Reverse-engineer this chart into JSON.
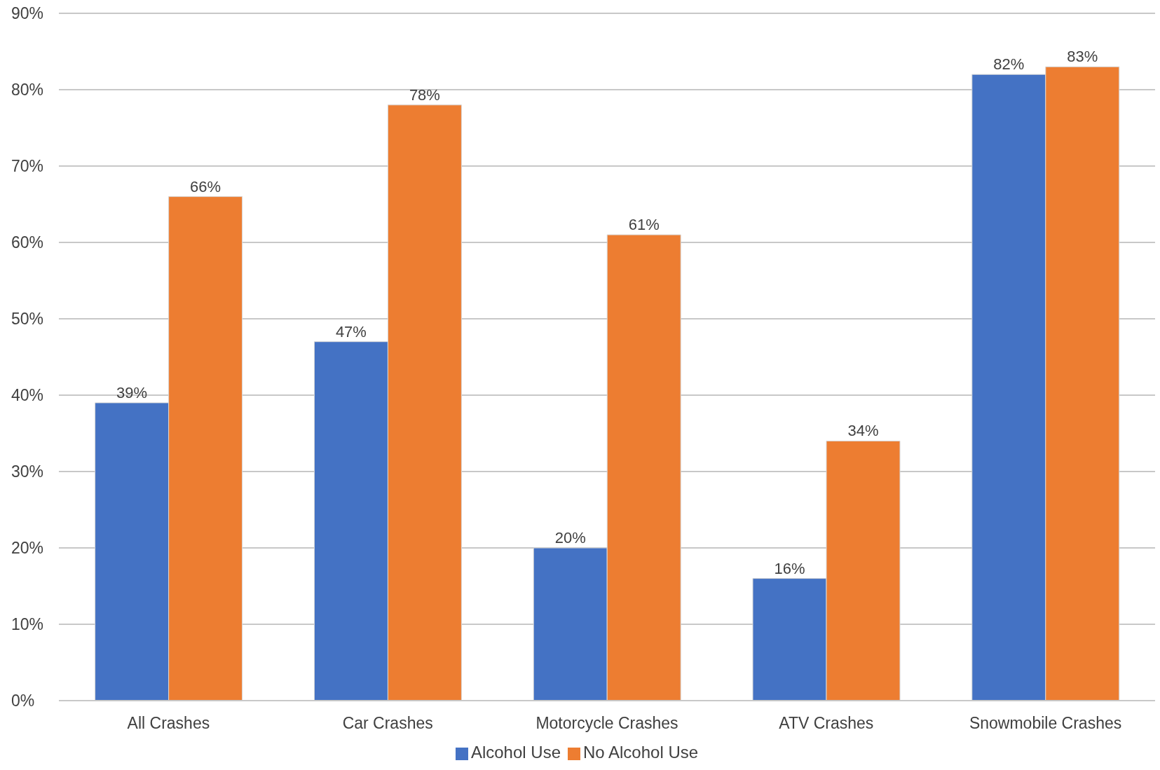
{
  "chart_data": {
    "type": "bar",
    "categories": [
      "All Crashes",
      "Car Crashes",
      "Motorcycle Crashes",
      "ATV Crashes",
      "Snowmobile Crashes"
    ],
    "series": [
      {
        "name": "Alcohol Use",
        "color": "#4472c4",
        "values": [
          39,
          47,
          20,
          16,
          82
        ],
        "value_labels": [
          "39%",
          "47%",
          "20%",
          "16%",
          "82%"
        ]
      },
      {
        "name": "No Alcohol Use",
        "color": "#ed7d31",
        "values": [
          66,
          78,
          61,
          34,
          83
        ],
        "value_labels": [
          "66%",
          "78%",
          "61%",
          "34%",
          "83%"
        ]
      }
    ],
    "ylim": [
      0,
      90
    ],
    "yticks": [
      {
        "value": 0,
        "label": "0%"
      },
      {
        "value": 10,
        "label": "10%"
      },
      {
        "value": 20,
        "label": "20%"
      },
      {
        "value": 30,
        "label": "30%"
      },
      {
        "value": 40,
        "label": "40%"
      },
      {
        "value": 50,
        "label": "50%"
      },
      {
        "value": 60,
        "label": "60%"
      },
      {
        "value": 70,
        "label": "70%"
      },
      {
        "value": 80,
        "label": "80%"
      },
      {
        "value": 90,
        "label": "90%"
      }
    ],
    "grid": "y",
    "legend": "bottom"
  }
}
